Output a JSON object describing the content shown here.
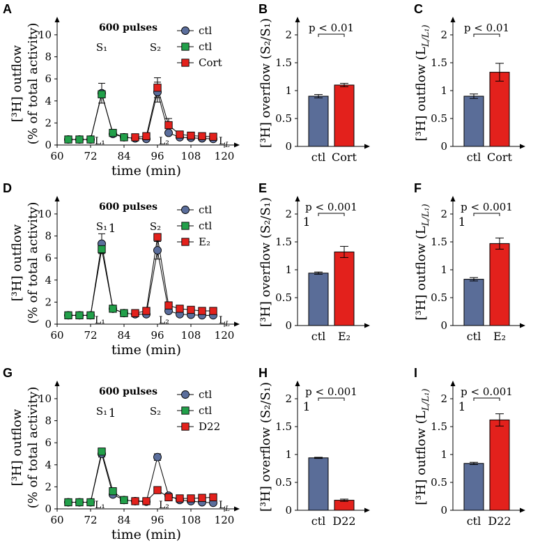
{
  "colors": {
    "ctl_circle": "#5b6e9c",
    "ctl_square": "#22a04a",
    "treat": "#e3211c",
    "bar_ctl": "#5a6d98",
    "bar_treat": "#e3211c"
  },
  "chart_data": [
    {
      "id": "A",
      "type": "line",
      "ylabel": [
        "[³H] outflow",
        "(% of total activity)"
      ],
      "xlabel": "time (min)",
      "xticks": [
        60,
        72,
        84,
        96,
        108,
        120
      ],
      "yticks": [
        0,
        2,
        4,
        6,
        8,
        10
      ],
      "xlim": [
        60,
        122
      ],
      "ylim": [
        0,
        10.5
      ],
      "annotation": "600 pulses",
      "stim_labels": [
        "S₁",
        "S₂"
      ],
      "basal_labels": [
        "L₁",
        "L₂",
        "L_L"
      ],
      "legend": [
        "ctl",
        "ctl",
        "Cort"
      ],
      "series": [
        {
          "name": "ctl",
          "marker": "circle",
          "x": [
            64,
            68,
            72,
            76,
            80,
            84,
            88,
            92,
            96,
            100,
            104,
            108,
            112,
            116
          ],
          "y": [
            0.5,
            0.5,
            0.5,
            4.7,
            1.0,
            0.7,
            0.6,
            0.55,
            4.8,
            1.1,
            0.7,
            0.65,
            0.6,
            0.55
          ],
          "err": [
            0,
            0,
            0,
            0.9,
            0,
            0,
            0,
            0,
            0.9,
            0,
            0,
            0,
            0,
            0
          ]
        },
        {
          "name": "ctl",
          "marker": "square",
          "x": [
            64,
            68,
            72,
            76,
            80,
            84
          ],
          "y": [
            0.5,
            0.5,
            0.5,
            4.6,
            1.1,
            0.7
          ],
          "err": [
            0,
            0,
            0,
            0.3,
            0.3,
            0
          ]
        },
        {
          "name": "Cort",
          "marker": "square",
          "x": [
            88,
            92,
            96,
            100,
            104,
            108,
            112,
            116
          ],
          "y": [
            0.7,
            0.8,
            5.2,
            1.8,
            0.95,
            0.85,
            0.8,
            0.75
          ],
          "err": [
            0,
            0,
            0.9,
            0.6,
            0,
            0,
            0,
            0
          ]
        }
      ]
    },
    {
      "id": "B",
      "type": "bar",
      "ylabel": "[³H] overflow (S₂/S₁)",
      "categories": [
        "ctl",
        "Cort"
      ],
      "values": [
        0.9,
        1.1
      ],
      "err": [
        0.03,
        0.03
      ],
      "yticks": [
        0,
        0.5,
        1,
        1.5,
        2
      ],
      "ytick_labels": [
        "0",
        "0.5",
        "1",
        "1.5",
        "2"
      ],
      "ylim": [
        0,
        2.1
      ],
      "sig": "p < 0.01",
      "mark": ""
    },
    {
      "id": "C",
      "type": "bar",
      "ylabel": "[³H] outflow (L_L/L₁)",
      "categories": [
        "ctl",
        "Cort"
      ],
      "values": [
        0.9,
        1.33
      ],
      "err": [
        0.04,
        0.16
      ],
      "yticks": [
        0,
        0.5,
        1,
        1.5,
        2
      ],
      "ytick_labels": [
        "0",
        "0.5",
        "1",
        "1.5",
        "2"
      ],
      "ylim": [
        0,
        2.1
      ],
      "sig": "p < 0.01",
      "mark": ""
    },
    {
      "id": "D",
      "type": "line",
      "ylabel": [
        "[³H] outflow",
        "(% of total activity)"
      ],
      "xlabel": "time (min)",
      "xticks": [
        60,
        72,
        84,
        96,
        108,
        120
      ],
      "yticks": [
        0,
        2,
        4,
        6,
        8,
        10
      ],
      "xlim": [
        60,
        122
      ],
      "ylim": [
        0,
        10.5
      ],
      "annotation": "600 pulses",
      "stim_labels": [
        "S₁",
        "S₂"
      ],
      "stim_mark": "1",
      "basal_labels": [
        "L₁",
        "L₂",
        "L_L"
      ],
      "legend": [
        "ctl",
        "ctl",
        "E₂"
      ],
      "series": [
        {
          "name": "ctl",
          "marker": "circle",
          "x": [
            64,
            68,
            72,
            76,
            80,
            84,
            88,
            92,
            96,
            100,
            104,
            108,
            112,
            116
          ],
          "y": [
            0.8,
            0.8,
            0.8,
            7.3,
            1.4,
            1.0,
            0.9,
            0.9,
            6.7,
            1.2,
            0.9,
            0.85,
            0.8,
            0.8
          ],
          "err": [
            0,
            0,
            0,
            0.9,
            0,
            0,
            0,
            0,
            0.8,
            0,
            0,
            0,
            0,
            0
          ]
        },
        {
          "name": "ctl",
          "marker": "square",
          "x": [
            64,
            68,
            72,
            76,
            80,
            84
          ],
          "y": [
            0.8,
            0.8,
            0.8,
            6.8,
            1.4,
            1.0
          ],
          "err": [
            0,
            0,
            0,
            0.3,
            0,
            0
          ]
        },
        {
          "name": "E₂",
          "marker": "square",
          "x": [
            88,
            92,
            96,
            100,
            104,
            108,
            112,
            116
          ],
          "y": [
            1.0,
            1.2,
            7.9,
            1.7,
            1.4,
            1.3,
            1.2,
            1.2
          ],
          "err": [
            0,
            0,
            0.2,
            0,
            0,
            0,
            0,
            0
          ]
        }
      ]
    },
    {
      "id": "E",
      "type": "bar",
      "ylabel": "[³H] overflow (S₂/S₁)",
      "categories": [
        "ctl",
        "E₂"
      ],
      "values": [
        0.94,
        1.32
      ],
      "err": [
        0.02,
        0.1
      ],
      "yticks": [
        0,
        0.5,
        1,
        1.5,
        2
      ],
      "ytick_labels": [
        "0",
        "0.5",
        "1",
        "1.5",
        "2"
      ],
      "ylim": [
        0,
        2.1
      ],
      "sig": "p < 0.001",
      "mark": "1"
    },
    {
      "id": "F",
      "type": "bar",
      "ylabel": "[³H] outflow (L_L/L₁)",
      "categories": [
        "ctl",
        "E₂"
      ],
      "values": [
        0.83,
        1.47
      ],
      "err": [
        0.03,
        0.1
      ],
      "yticks": [
        0,
        0.5,
        1,
        1.5,
        2
      ],
      "ytick_labels": [
        "0",
        "0.5",
        "1",
        "1.5",
        "2"
      ],
      "ylim": [
        0,
        2.1
      ],
      "sig": "p < 0.001",
      "mark": "1"
    },
    {
      "id": "G",
      "type": "line",
      "ylabel": [
        "[³H] outflow",
        "(% of total activity)"
      ],
      "xlabel": "time (min)",
      "xticks": [
        60,
        72,
        84,
        96,
        108,
        120
      ],
      "yticks": [
        0,
        2,
        4,
        6,
        8,
        10
      ],
      "xlim": [
        60,
        122
      ],
      "ylim": [
        0,
        10.5
      ],
      "annotation": "600 pulses",
      "stim_labels": [
        "S₁",
        "S₂"
      ],
      "stim_mark": "1",
      "basal_labels": [
        "L₁",
        "L₂",
        "L_L"
      ],
      "legend": [
        "ctl",
        "ctl",
        "D22"
      ],
      "series": [
        {
          "name": "ctl",
          "marker": "circle",
          "x": [
            64,
            68,
            72,
            76,
            80,
            84,
            88,
            92,
            96,
            100,
            104,
            108,
            112,
            116
          ],
          "y": [
            0.6,
            0.6,
            0.6,
            5.0,
            1.3,
            0.8,
            0.7,
            0.65,
            4.7,
            1.2,
            0.8,
            0.7,
            0.6,
            0.55
          ],
          "err": [
            0,
            0,
            0,
            0.3,
            0,
            0,
            0,
            0,
            0.3,
            0,
            0,
            0,
            0,
            0
          ]
        },
        {
          "name": "ctl",
          "marker": "square",
          "x": [
            64,
            68,
            72,
            76,
            80,
            84
          ],
          "y": [
            0.6,
            0.6,
            0.6,
            5.2,
            1.6,
            0.8
          ],
          "err": [
            0,
            0,
            0,
            0.3,
            0,
            0
          ]
        },
        {
          "name": "D22",
          "marker": "square",
          "x": [
            88,
            92,
            96,
            100,
            104,
            108,
            112,
            116
          ],
          "y": [
            0.7,
            0.7,
            1.7,
            1.05,
            0.95,
            0.95,
            1.0,
            1.05
          ],
          "err": [
            0,
            0,
            0,
            0,
            0,
            0,
            0,
            0
          ]
        }
      ]
    },
    {
      "id": "H",
      "type": "bar",
      "ylabel": "[³H] overflow (S₂/S₁)",
      "categories": [
        "ctl",
        "D22"
      ],
      "values": [
        0.94,
        0.18
      ],
      "err": [
        0.01,
        0.02
      ],
      "yticks": [
        0,
        0.5,
        1,
        1.5,
        2
      ],
      "ytick_labels": [
        "0",
        "0.5",
        "1",
        "1.5",
        "2"
      ],
      "ylim": [
        0,
        2.1
      ],
      "sig": "p < 0.001",
      "mark": "1"
    },
    {
      "id": "I",
      "type": "bar",
      "ylabel": "[³H] outflow (L_L/L₁)",
      "categories": [
        "ctl",
        "D22"
      ],
      "values": [
        0.84,
        1.62
      ],
      "err": [
        0.02,
        0.11
      ],
      "yticks": [
        0,
        0.5,
        1,
        1.5,
        2
      ],
      "ytick_labels": [
        "0",
        "0.5",
        "1",
        "1.5",
        "2"
      ],
      "ylim": [
        0,
        2.1
      ],
      "sig": "p < 0.001",
      "mark": "1"
    }
  ]
}
